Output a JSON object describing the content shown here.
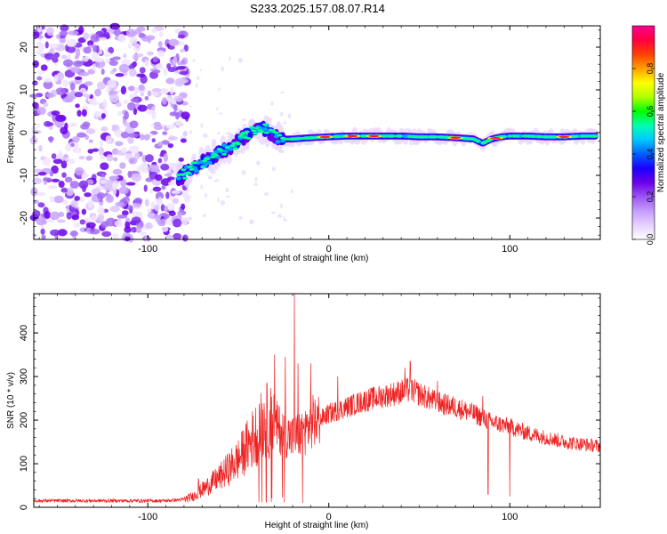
{
  "title": "S233.2025.157.08.07.R14",
  "chart_data": [
    {
      "type": "heatmap",
      "xlabel": "Height of straight line (km)",
      "ylabel": "Frequency (Hz)",
      "xlim": [
        -163,
        150
      ],
      "ylim": [
        -25,
        25
      ],
      "x_ticks": [
        {
          "value": -100,
          "label": "-100"
        },
        {
          "value": 0,
          "label": "0"
        },
        {
          "value": 100,
          "label": "100"
        }
      ],
      "y_ticks": [
        {
          "value": 20,
          "label": "20"
        },
        {
          "value": 10,
          "label": "10"
        },
        {
          "value": 0,
          "label": "0"
        },
        {
          "value": -10,
          "label": "-10"
        },
        {
          "value": -20,
          "label": "-20"
        }
      ],
      "colorbar": {
        "label": "Normalized spectral amplitude",
        "range": [
          0,
          1
        ],
        "ticks": [
          {
            "value": 0.0,
            "label": "0.0"
          },
          {
            "value": 0.2,
            "label": "0.2"
          },
          {
            "value": 0.4,
            "label": "0.4"
          },
          {
            "value": 0.6,
            "label": "0.6"
          },
          {
            "value": 0.8,
            "label": "0.8"
          }
        ],
        "colors": [
          "#ffffff",
          "#e6d2ff",
          "#c69cff",
          "#9b55f5",
          "#6a00e8",
          "#1a00ff",
          "#0060ff",
          "#00c8ff",
          "#00ffb0",
          "#00ff00",
          "#b0ff00",
          "#ffff00",
          "#ffa000",
          "#ff4000",
          "#ff0040",
          "#ff0090"
        ]
      },
      "noise_region": {
        "x": [
          -163,
          -78
        ],
        "frequency": [
          -25,
          25
        ]
      },
      "ridge": {
        "x": [
          -83,
          -78,
          -70,
          -62,
          -55,
          -48,
          -42,
          -38,
          -34,
          -30,
          -25,
          -20,
          -10,
          0,
          10,
          20,
          30,
          40,
          50,
          60,
          70,
          80,
          85,
          90,
          95,
          100,
          110,
          120,
          130,
          140,
          148
        ],
        "frequency": [
          -11,
          -9,
          -7,
          -5,
          -3.5,
          -1.5,
          0.5,
          1.5,
          0.5,
          -1,
          -1.5,
          -1.5,
          -1.2,
          -1,
          -0.8,
          -0.8,
          -0.8,
          -0.8,
          -1,
          -1,
          -1.2,
          -1.5,
          -2.5,
          -1.5,
          -1,
          -0.8,
          -0.8,
          -1,
          -1,
          -0.8,
          -0.8
        ]
      },
      "colorscale_note": ""
    },
    {
      "type": "line",
      "xlabel": "Height of straight line (km)",
      "ylabel": "SNR (10 * v/v)",
      "xlim": [
        -163,
        150
      ],
      "ylim": [
        0,
        490
      ],
      "x_ticks": [
        {
          "value": -100,
          "label": "-100"
        },
        {
          "value": 0,
          "label": "0"
        },
        {
          "value": 100,
          "label": "100"
        }
      ],
      "y_ticks": [
        {
          "value": 0,
          "label": "0"
        },
        {
          "value": 100,
          "label": "100"
        },
        {
          "value": 200,
          "label": "200"
        },
        {
          "value": 300,
          "label": "300"
        },
        {
          "value": 400,
          "label": "400"
        }
      ],
      "series": [
        {
          "color": "#ee2222",
          "x": [
            -163,
            -150,
            -140,
            -130,
            -120,
            -110,
            -100,
            -90,
            -80,
            -75,
            -70,
            -65,
            -60,
            -55,
            -50,
            -45,
            -40,
            -35,
            -30,
            -25,
            -20,
            -15,
            -12,
            -10,
            -5,
            0,
            10,
            20,
            30,
            40,
            45,
            50,
            55,
            60,
            70,
            80,
            90,
            100,
            110,
            120,
            130,
            140,
            150
          ],
          "values": [
            15,
            15,
            15,
            15,
            15,
            15,
            15,
            15,
            18,
            25,
            40,
            55,
            70,
            90,
            110,
            140,
            170,
            200,
            190,
            170,
            160,
            170,
            180,
            195,
            200,
            215,
            230,
            245,
            255,
            265,
            270,
            260,
            250,
            240,
            230,
            215,
            195,
            185,
            170,
            160,
            150,
            145,
            140
          ]
        }
      ],
      "spikes": [
        {
          "x": -72,
          "y": 65
        },
        {
          "x": -53,
          "y": 115
        },
        {
          "x": -37,
          "y": 290
        },
        {
          "x": -30,
          "y": 350
        },
        {
          "x": -24,
          "y": 345
        },
        {
          "x": -19,
          "y": 500
        },
        {
          "x": -17,
          "y": 330
        },
        {
          "x": -10,
          "y": 330
        },
        {
          "x": 5,
          "y": 300
        },
        {
          "x": 42,
          "y": 320
        },
        {
          "x": 45,
          "y": 335
        },
        {
          "x": 60,
          "y": 290
        },
        {
          "x": 85,
          "y": 255
        }
      ],
      "dips": [
        {
          "x": 88,
          "y": 30
        },
        {
          "x": 100,
          "y": 25
        }
      ]
    }
  ]
}
